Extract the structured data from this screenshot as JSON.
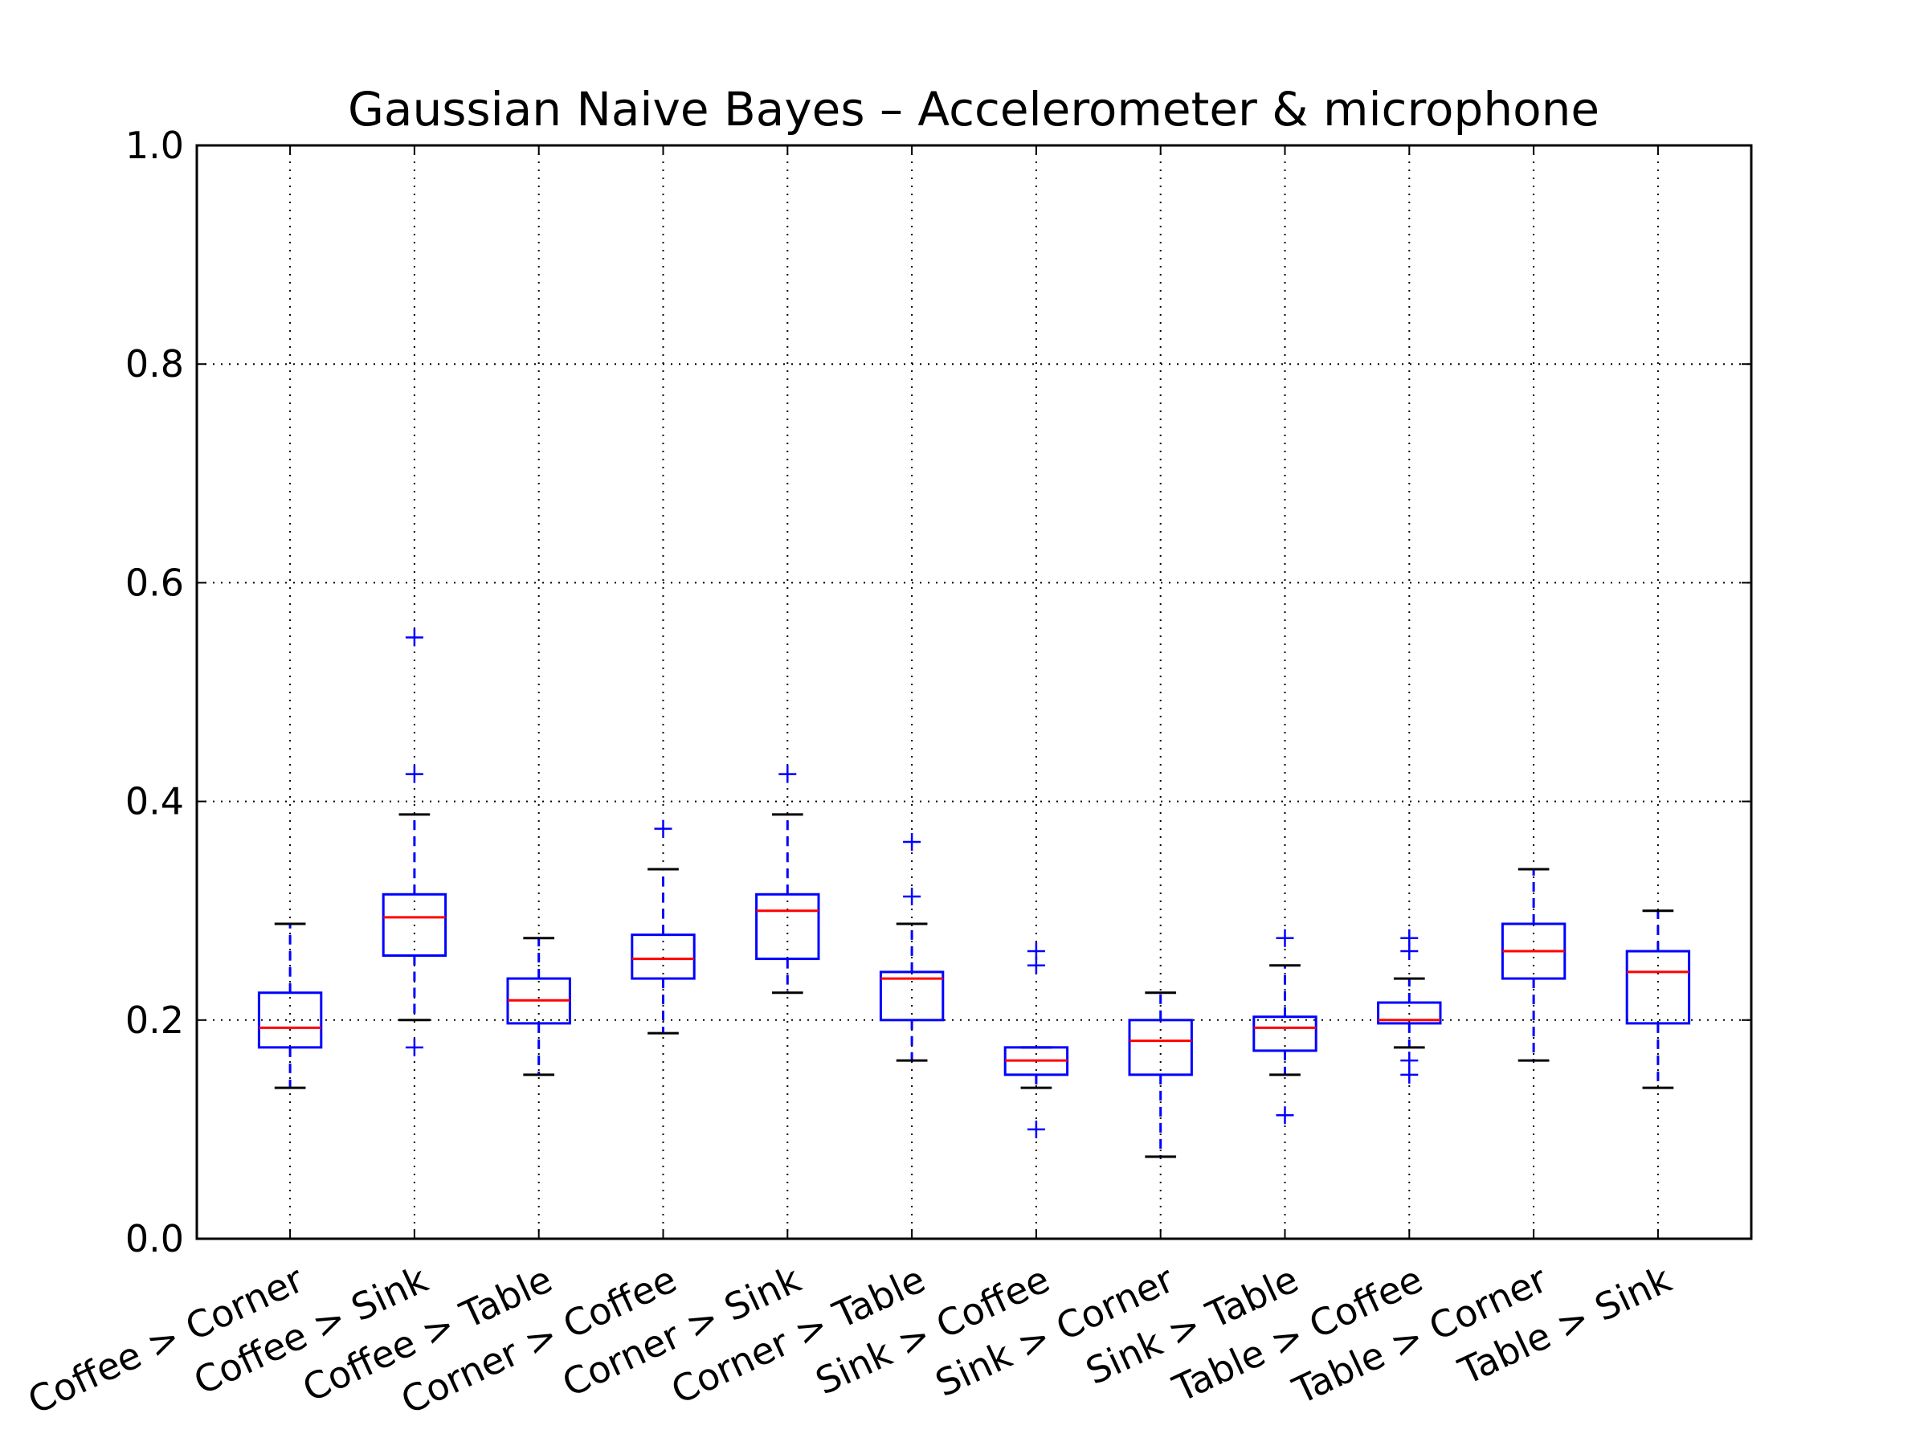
{
  "chart_data": {
    "type": "box",
    "title": "Gaussian Naive Bayes – Accelerometer & microphone",
    "xlabel": "",
    "ylabel": "",
    "ylim": [
      0.0,
      1.0
    ],
    "yticks": [
      "0.0",
      "0.2",
      "0.4",
      "0.6",
      "0.8",
      "1.0"
    ],
    "grid": true,
    "colors": {
      "box": "#0000ff",
      "median": "#ff0000",
      "cap": "#000000",
      "outlier": "#0000ff",
      "grid": "#000000"
    },
    "categories": [
      "Coffee > Corner",
      "Coffee > Sink",
      "Coffee > Table",
      "Corner > Coffee",
      "Corner > Sink",
      "Corner > Table",
      "Sink > Coffee",
      "Sink > Corner",
      "Sink > Table",
      "Table > Coffee",
      "Table > Corner",
      "Table > Sink"
    ],
    "boxes": [
      {
        "whislo": 0.138,
        "q1": 0.175,
        "median": 0.193,
        "q3": 0.225,
        "whishi": 0.288,
        "fliers": []
      },
      {
        "whislo": 0.2,
        "q1": 0.259,
        "median": 0.294,
        "q3": 0.315,
        "whishi": 0.388,
        "fliers": [
          0.175,
          0.425,
          0.55
        ]
      },
      {
        "whislo": 0.15,
        "q1": 0.197,
        "median": 0.218,
        "q3": 0.238,
        "whishi": 0.275,
        "fliers": []
      },
      {
        "whislo": 0.188,
        "q1": 0.238,
        "median": 0.256,
        "q3": 0.278,
        "whishi": 0.338,
        "fliers": [
          0.375
        ]
      },
      {
        "whislo": 0.225,
        "q1": 0.256,
        "median": 0.3,
        "q3": 0.315,
        "whishi": 0.388,
        "fliers": [
          0.425
        ]
      },
      {
        "whislo": 0.163,
        "q1": 0.2,
        "median": 0.238,
        "q3": 0.244,
        "whishi": 0.288,
        "fliers": [
          0.313,
          0.363
        ]
      },
      {
        "whislo": 0.138,
        "q1": 0.15,
        "median": 0.163,
        "q3": 0.175,
        "whishi": 0.175,
        "fliers": [
          0.1,
          0.25,
          0.263
        ]
      },
      {
        "whislo": 0.075,
        "q1": 0.15,
        "median": 0.181,
        "q3": 0.2,
        "whishi": 0.225,
        "fliers": []
      },
      {
        "whislo": 0.15,
        "q1": 0.172,
        "median": 0.193,
        "q3": 0.203,
        "whishi": 0.25,
        "fliers": [
          0.113,
          0.275
        ]
      },
      {
        "whislo": 0.175,
        "q1": 0.197,
        "median": 0.2,
        "q3": 0.216,
        "whishi": 0.238,
        "fliers": [
          0.15,
          0.163,
          0.263,
          0.275
        ]
      },
      {
        "whislo": 0.163,
        "q1": 0.238,
        "median": 0.263,
        "q3": 0.288,
        "whishi": 0.338,
        "fliers": []
      },
      {
        "whislo": 0.138,
        "q1": 0.197,
        "median": 0.244,
        "q3": 0.263,
        "whishi": 0.3,
        "fliers": []
      }
    ]
  }
}
